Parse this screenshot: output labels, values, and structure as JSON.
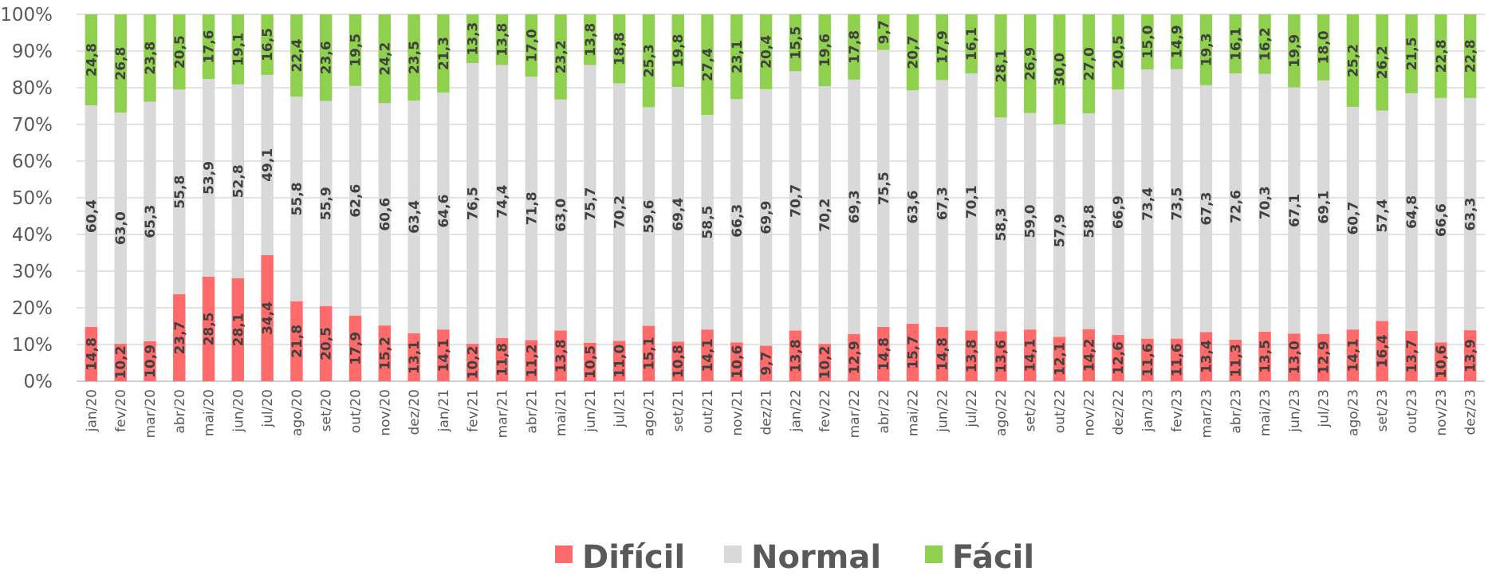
{
  "chart_data": {
    "type": "bar",
    "stacked": true,
    "categories": [
      "jan/20",
      "fev/20",
      "mar/20",
      "abr/20",
      "mai/20",
      "jun/20",
      "jul/20",
      "ago/20",
      "set/20",
      "out/20",
      "nov/20",
      "dez/20",
      "jan/21",
      "fev/21",
      "mar/21",
      "abr/21",
      "mai/21",
      "jun/21",
      "jul/21",
      "ago/21",
      "set/21",
      "out/21",
      "nov/21",
      "dez/21",
      "jan/22",
      "fev/22",
      "mar/22",
      "abr/22",
      "mai/22",
      "jun/22",
      "jul/22",
      "ago/22",
      "set/22",
      "out/22",
      "nov/22",
      "dez/22",
      "jan/23",
      "fev/23",
      "mar/23",
      "abr/23",
      "mai/23",
      "jun/23",
      "jul/23",
      "ago/23",
      "set/23",
      "out/23",
      "nov/23",
      "dez/23"
    ],
    "series": [
      {
        "name": "Difícil",
        "color": "#ff6b6b",
        "values": [
          14.8,
          10.2,
          10.9,
          23.7,
          28.5,
          28.1,
          34.4,
          21.8,
          20.5,
          17.9,
          15.2,
          13.1,
          14.1,
          10.2,
          11.8,
          11.2,
          13.8,
          10.5,
          11.0,
          15.1,
          10.8,
          14.1,
          10.6,
          9.7,
          13.8,
          10.2,
          12.9,
          14.8,
          15.7,
          14.8,
          13.8,
          13.6,
          14.1,
          12.1,
          14.2,
          12.6,
          11.6,
          11.6,
          13.4,
          11.3,
          13.5,
          13.0,
          12.9,
          14.1,
          16.4,
          13.7,
          10.6,
          13.9
        ]
      },
      {
        "name": "Normal",
        "color": "#d9d9d9",
        "values": [
          60.4,
          63.0,
          65.3,
          55.8,
          53.9,
          52.8,
          49.1,
          55.8,
          55.9,
          62.6,
          60.6,
          63.4,
          64.6,
          76.5,
          74.4,
          71.8,
          63.0,
          75.7,
          70.2,
          59.6,
          69.4,
          58.5,
          66.3,
          69.9,
          70.7,
          70.2,
          69.3,
          75.5,
          63.6,
          67.3,
          70.1,
          58.3,
          59.0,
          57.9,
          58.8,
          66.9,
          73.4,
          73.5,
          67.3,
          72.6,
          70.3,
          67.1,
          69.1,
          60.7,
          57.4,
          64.8,
          66.6,
          63.3
        ]
      },
      {
        "name": "Fácil",
        "color": "#8fd14f",
        "values": [
          24.8,
          26.8,
          23.8,
          20.5,
          17.6,
          19.1,
          16.5,
          22.4,
          23.6,
          19.5,
          24.2,
          23.5,
          21.3,
          13.3,
          13.8,
          17.0,
          23.2,
          13.8,
          18.8,
          25.3,
          19.8,
          27.4,
          23.1,
          20.4,
          15.5,
          19.6,
          17.8,
          9.7,
          20.7,
          17.9,
          16.1,
          28.1,
          26.9,
          30.0,
          27.0,
          20.5,
          15.0,
          14.9,
          19.3,
          16.1,
          16.2,
          19.9,
          18.0,
          25.2,
          26.2,
          21.5,
          22.8,
          22.8
        ]
      }
    ],
    "y_ticks": [
      "0%",
      "10%",
      "20%",
      "30%",
      "40%",
      "50%",
      "60%",
      "70%",
      "80%",
      "90%",
      "100%"
    ],
    "ylim": [
      0,
      100
    ],
    "grid": true,
    "legend_position": "bottom",
    "title": "",
    "xlabel": "",
    "ylabel": ""
  }
}
